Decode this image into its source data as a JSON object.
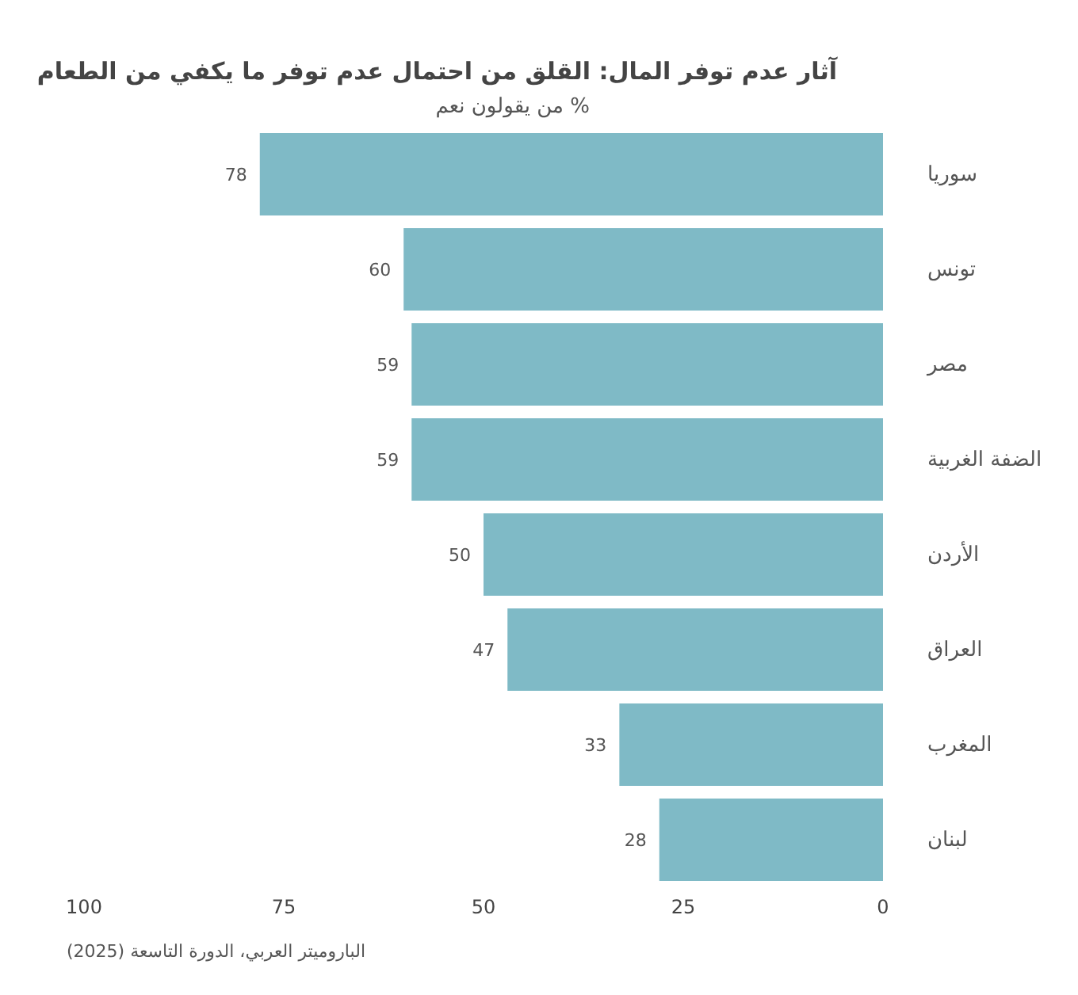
{
  "chart_data": {
    "type": "bar",
    "orientation": "horizontal",
    "title": "آثار عدم توفر المال: القلق من احتمال عدم توفر ما يكفي من الطعام",
    "subtitle": "% من يقولون نعم",
    "categories": [
      "سوريا",
      "تونس",
      "مصر",
      "الضفة الغربية",
      "الأردن",
      "العراق",
      "المغرب",
      "لبنان"
    ],
    "values": [
      78,
      60,
      59,
      59,
      50,
      47,
      33,
      28
    ],
    "color": "#7fbac6",
    "data_labels": true,
    "xlim": [
      100,
      0
    ],
    "xticks": [
      100,
      75,
      50,
      25,
      0
    ],
    "grid": false,
    "annotations": [
      "الباروميتر العربي، الدورة التاسعة (2025)"
    ]
  }
}
